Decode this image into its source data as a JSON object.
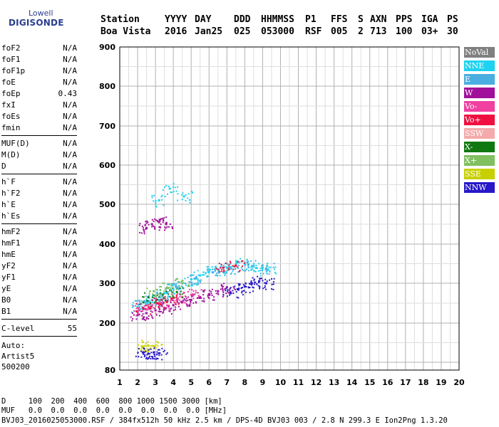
{
  "logo": {
    "line1": "Lowell",
    "line2": "DIGISONDE"
  },
  "header": {
    "labels": [
      "Station",
      "YYYY",
      "DAY",
      "DDD",
      "HHMMSS",
      "P1",
      "FFS",
      "S",
      "AXN",
      "PPS",
      "IGA",
      "PS"
    ],
    "values": [
      "Boa Vista",
      "2016",
      "Jan25",
      "025",
      "053000",
      "RSF",
      "005",
      "2",
      "713",
      "100",
      "03+",
      "30"
    ]
  },
  "params": {
    "group1": [
      {
        "name": "foF2",
        "value": "N/A"
      },
      {
        "name": "foF1",
        "value": "N/A"
      },
      {
        "name": "foF1p",
        "value": "N/A"
      },
      {
        "name": "foE",
        "value": "N/A"
      },
      {
        "name": "foEp",
        "value": "0.43"
      },
      {
        "name": "fxI",
        "value": "N/A"
      },
      {
        "name": "foEs",
        "value": "N/A"
      },
      {
        "name": "fmin",
        "value": "N/A"
      }
    ],
    "group2": [
      {
        "name": "MUF(D)",
        "value": "N/A"
      },
      {
        "name": "M(D)",
        "value": "N/A"
      },
      {
        "name": "D",
        "value": "N/A"
      }
    ],
    "group3": [
      {
        "name": "h`F",
        "value": "N/A"
      },
      {
        "name": "h`F2",
        "value": "N/A"
      },
      {
        "name": "h`E",
        "value": "N/A"
      },
      {
        "name": "h`Es",
        "value": "N/A"
      }
    ],
    "group4": [
      {
        "name": "hmF2",
        "value": "N/A"
      },
      {
        "name": "hmF1",
        "value": "N/A"
      },
      {
        "name": "hmE",
        "value": "N/A"
      },
      {
        "name": "yF2",
        "value": "N/A"
      },
      {
        "name": "yF1",
        "value": "N/A"
      },
      {
        "name": "yE",
        "value": "N/A"
      },
      {
        "name": "B0",
        "value": "N/A"
      },
      {
        "name": "B1",
        "value": "N/A"
      }
    ],
    "clevel": {
      "name": "C-level",
      "value": "55"
    },
    "auto": [
      "Auto:",
      "Artist5",
      "500200"
    ]
  },
  "legend": [
    {
      "label": "NoVal",
      "color": "#808080"
    },
    {
      "label": "NNE",
      "color": "#1ed2f0"
    },
    {
      "label": "E",
      "color": "#4aaee0"
    },
    {
      "label": "W",
      "color": "#a0109a"
    },
    {
      "label": "Vo-",
      "color": "#f040a0"
    },
    {
      "label": "Vo+",
      "color": "#f01040"
    },
    {
      "label": "SSW",
      "color": "#f4aaaa"
    },
    {
      "label": "X-",
      "color": "#107810"
    },
    {
      "label": "X+",
      "color": "#80c060"
    },
    {
      "label": "SSE",
      "color": "#c8d000"
    },
    {
      "label": "NNW",
      "color": "#2818c8"
    }
  ],
  "footer": {
    "d_row": "D     100  200  400  600  800 1000 1500 3000 [km]",
    "muf_row": "MUF   0.0  0.0  0.0  0.0  0.0  0.0  0.0  0.0 [MHz]",
    "info": "BVJ03_2016025053000.RSF / 384fx512h 50 kHz 2.5 km / DPS-4D BVJ03 003 / 2.8 N 299.3 E Ion2Png 1.3.20"
  },
  "chart_data": {
    "type": "scatter",
    "xlim": [
      1,
      20
    ],
    "ylim": [
      80,
      900
    ],
    "x_ticks": [
      1,
      2,
      3,
      4,
      5,
      6,
      7,
      8,
      9,
      10,
      11,
      12,
      13,
      14,
      15,
      16,
      17,
      18,
      19,
      20
    ],
    "y_ticks": [
      80,
      200,
      300,
      400,
      500,
      600,
      700,
      800,
      900
    ],
    "grid": true,
    "legend_position": "right",
    "series": [
      {
        "name": "NNE",
        "color": "#1ed2f0",
        "points": [
          [
            2.0,
            240
          ],
          [
            2.5,
            250
          ],
          [
            3.0,
            262
          ],
          [
            3.5,
            275
          ],
          [
            4.0,
            285
          ],
          [
            4.5,
            300
          ],
          [
            5.0,
            310
          ],
          [
            5.5,
            320
          ],
          [
            6.0,
            330
          ],
          [
            6.5,
            335
          ],
          [
            7.0,
            340
          ],
          [
            7.5,
            345
          ],
          [
            8.0,
            350
          ],
          [
            8.5,
            345
          ],
          [
            9.0,
            340
          ],
          [
            9.3,
            335
          ],
          [
            3.2,
            510
          ],
          [
            3.8,
            540
          ],
          [
            4.6,
            520
          ]
        ]
      },
      {
        "name": "E",
        "color": "#4aaee0",
        "points": [
          [
            2.2,
            248
          ],
          [
            2.8,
            258
          ],
          [
            3.4,
            270
          ],
          [
            4.2,
            290
          ],
          [
            5.2,
            312
          ],
          [
            6.2,
            328
          ],
          [
            7.2,
            338
          ],
          [
            8.2,
            348
          ],
          [
            9.2,
            338
          ]
        ]
      },
      {
        "name": "W",
        "color": "#a0109a",
        "points": [
          [
            2.0,
            220
          ],
          [
            2.5,
            225
          ],
          [
            3.0,
            232
          ],
          [
            3.5,
            238
          ],
          [
            4.0,
            245
          ],
          [
            4.5,
            252
          ],
          [
            5.0,
            258
          ],
          [
            5.5,
            265
          ],
          [
            6.0,
            272
          ],
          [
            6.5,
            280
          ],
          [
            7.0,
            290
          ],
          [
            2.5,
            440
          ],
          [
            2.8,
            450
          ],
          [
            3.2,
            455
          ],
          [
            3.6,
            450
          ]
        ]
      },
      {
        "name": "Vo-",
        "color": "#f040a0",
        "points": [
          [
            2.1,
            232
          ],
          [
            2.7,
            240
          ],
          [
            3.3,
            250
          ],
          [
            3.9,
            258
          ],
          [
            4.5,
            265
          ],
          [
            5.1,
            272
          ]
        ]
      },
      {
        "name": "Vo+",
        "color": "#f01040",
        "points": [
          [
            2.3,
            238
          ],
          [
            3.1,
            250
          ],
          [
            3.9,
            262
          ],
          [
            6.8,
            340
          ],
          [
            7.5,
            345
          ]
        ]
      },
      {
        "name": "X-",
        "color": "#107810",
        "points": [
          [
            2.6,
            265
          ],
          [
            3.4,
            272
          ],
          [
            4.2,
            278
          ]
        ]
      },
      {
        "name": "X+",
        "color": "#80c060",
        "points": [
          [
            2.9,
            280
          ],
          [
            3.7,
            288
          ],
          [
            4.5,
            300
          ]
        ]
      },
      {
        "name": "SSE",
        "color": "#c8d000",
        "points": [
          [
            2.3,
            140
          ],
          [
            2.6,
            143
          ],
          [
            2.9,
            141
          ]
        ]
      },
      {
        "name": "NNW",
        "color": "#2818c8",
        "points": [
          [
            7.2,
            275
          ],
          [
            7.6,
            285
          ],
          [
            8.0,
            292
          ],
          [
            8.4,
            300
          ],
          [
            8.8,
            305
          ],
          [
            9.2,
            300
          ],
          [
            2.3,
            125
          ],
          [
            2.6,
            122
          ],
          [
            2.9,
            125
          ],
          [
            3.2,
            123
          ]
        ]
      }
    ]
  }
}
